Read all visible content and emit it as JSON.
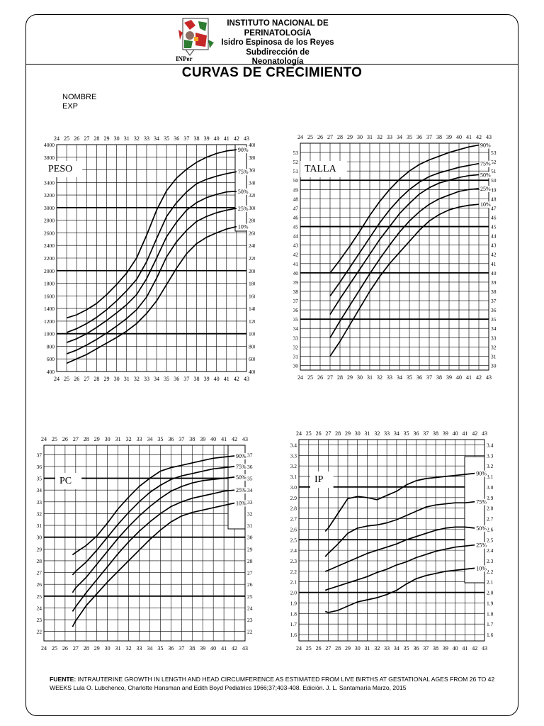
{
  "header": {
    "institute_line1": "INSTITUTO NACIONAL DE",
    "institute_line2": "PERINATOLOGÍA",
    "institute_line3": "Isidro Espinosa de los Reyes",
    "institute_line4": "Subdirección de Neonatología",
    "logo_caption": "INPer",
    "title": "CURVAS DE CRECIMIENTO",
    "nombre_label": "NOMBRE",
    "exp_label": "EXP"
  },
  "footer": {
    "fuente_label": "FUENTE:",
    "fuente_text": "INTRAUTERINE GROWTH IN LENGTH AND HEAD CIRCUMFERENCE AS ESTIMATED FROM LIVE BIRTHS AT GESTATIONAL AGES FROM 26 TO 42 WEEKS Lula O. Lubchenco, Charlotte Hansman and Edith Boyd Pediatrics 1966;37;403-408. Edición. J. L. Santamaría Marzo, 2015"
  },
  "colors": {
    "ink": "#000000",
    "background": "#ffffff"
  },
  "chart_data": [
    {
      "id": "peso",
      "type": "line",
      "title": "PESO",
      "xlabel": "",
      "ylabel": "",
      "x_ticks": [
        24,
        25,
        26,
        27,
        28,
        29,
        30,
        31,
        32,
        33,
        34,
        35,
        36,
        37,
        38,
        39,
        40,
        41,
        42,
        43
      ],
      "y_ticks": [
        400,
        600,
        800,
        1000,
        1200,
        1400,
        1600,
        1800,
        2000,
        2200,
        2400,
        2600,
        2800,
        3000,
        3200,
        3400,
        3600,
        3800,
        4000
      ],
      "y_tick_labels": [
        "400",
        "600",
        "800",
        "1000",
        "1200",
        "1400",
        "1600",
        "1800",
        "2000",
        "2200",
        "2400",
        "2600",
        "2800",
        "3000",
        "3200",
        "3400",
        "3600",
        "3800",
        "4000"
      ],
      "bold_y": [
        1000,
        2000,
        3000
      ],
      "xlim": [
        24,
        43
      ],
      "ylim": [
        400,
        4000
      ],
      "legend": "right",
      "series": [
        {
          "name": "90%",
          "x": [
            25,
            26,
            27,
            28,
            29,
            30,
            31,
            32,
            33,
            34,
            35,
            36,
            37,
            38,
            39,
            40,
            41,
            42
          ],
          "values": [
            1250,
            1300,
            1380,
            1480,
            1620,
            1780,
            1960,
            2200,
            2560,
            2960,
            3270,
            3470,
            3610,
            3720,
            3800,
            3860,
            3900,
            3920
          ]
        },
        {
          "name": "75%",
          "x": [
            25,
            26,
            27,
            28,
            29,
            30,
            31,
            32,
            33,
            34,
            35,
            36,
            37,
            38,
            39,
            40,
            41,
            42
          ],
          "values": [
            1020,
            1080,
            1160,
            1260,
            1380,
            1520,
            1680,
            1860,
            2140,
            2510,
            2860,
            3080,
            3250,
            3380,
            3450,
            3500,
            3540,
            3570
          ]
        },
        {
          "name": "50%",
          "x": [
            25,
            26,
            27,
            28,
            29,
            30,
            31,
            32,
            33,
            34,
            35,
            36,
            37,
            38,
            39,
            40,
            41,
            42
          ],
          "values": [
            860,
            920,
            1000,
            1100,
            1210,
            1330,
            1460,
            1620,
            1870,
            2200,
            2540,
            2770,
            2960,
            3080,
            3160,
            3210,
            3250,
            3260
          ]
        },
        {
          "name": "25%",
          "x": [
            25,
            26,
            27,
            28,
            29,
            30,
            31,
            32,
            33,
            34,
            35,
            36,
            37,
            38,
            39,
            40,
            41,
            42
          ],
          "values": [
            680,
            740,
            820,
            910,
            1010,
            1120,
            1240,
            1380,
            1580,
            1880,
            2220,
            2460,
            2640,
            2780,
            2860,
            2920,
            2960,
            2990
          ]
        },
        {
          "name": "10%",
          "x": [
            25,
            26,
            27,
            28,
            29,
            30,
            31,
            32,
            33,
            34,
            35,
            36,
            37,
            38,
            39,
            40,
            41,
            42
          ],
          "values": [
            530,
            600,
            670,
            760,
            850,
            940,
            1040,
            1160,
            1320,
            1520,
            1780,
            2040,
            2270,
            2430,
            2530,
            2600,
            2660,
            2700
          ]
        }
      ]
    },
    {
      "id": "talla",
      "type": "line",
      "title": "TALLA",
      "xlabel": "",
      "ylabel": "",
      "x_ticks": [
        24,
        25,
        26,
        27,
        28,
        29,
        30,
        31,
        32,
        33,
        34,
        35,
        36,
        37,
        38,
        39,
        40,
        41,
        42,
        43
      ],
      "y_ticks": [
        30,
        31,
        32,
        33,
        34,
        35,
        36,
        37,
        38,
        39,
        40,
        41,
        42,
        43,
        44,
        45,
        46,
        47,
        48,
        49,
        50,
        51,
        52,
        53
      ],
      "y_tick_labels": [
        "30",
        "31",
        "32",
        "33",
        "34",
        "35",
        "36",
        "37",
        "38",
        "39",
        "40",
        "41",
        "42",
        "43",
        "44",
        "45",
        "46",
        "47",
        "48",
        "49",
        "50",
        "51",
        "52",
        "53"
      ],
      "bold_y": [
        35,
        40,
        45,
        50
      ],
      "xlim": [
        24,
        43
      ],
      "ylim": [
        29.5,
        54
      ],
      "legend": "right",
      "series": [
        {
          "name": "90%",
          "x": [
            27,
            28,
            29,
            30,
            31,
            32,
            33,
            34,
            35,
            36,
            37,
            38,
            39,
            40,
            41,
            42
          ],
          "values": [
            40.0,
            41.4,
            42.9,
            44.5,
            46.2,
            47.7,
            49.0,
            50.1,
            51.0,
            51.7,
            52.2,
            52.6,
            53.0,
            53.3,
            53.6,
            53.8
          ]
        },
        {
          "name": "75%",
          "x": [
            27,
            28,
            29,
            30,
            31,
            32,
            33,
            34,
            35,
            36,
            37,
            38,
            39,
            40,
            41,
            42
          ],
          "values": [
            37.5,
            39.0,
            40.6,
            42.2,
            43.8,
            45.4,
            46.8,
            48.0,
            49.0,
            49.8,
            50.4,
            50.8,
            51.1,
            51.4,
            51.6,
            51.8
          ]
        },
        {
          "name": "50%",
          "x": [
            27,
            28,
            29,
            30,
            31,
            32,
            33,
            34,
            35,
            36,
            37,
            38,
            39,
            40,
            41,
            42
          ],
          "values": [
            35.5,
            37.2,
            38.8,
            40.4,
            42.0,
            43.6,
            45.0,
            46.4,
            47.5,
            48.5,
            49.2,
            49.7,
            50.0,
            50.3,
            50.5,
            50.6
          ]
        },
        {
          "name": "25%",
          "x": [
            27,
            28,
            29,
            30,
            31,
            32,
            33,
            34,
            35,
            36,
            37,
            38,
            39,
            40,
            41,
            42
          ],
          "values": [
            33.0,
            34.8,
            36.5,
            38.2,
            39.9,
            41.5,
            43.0,
            44.4,
            45.6,
            46.6,
            47.4,
            48.0,
            48.4,
            48.8,
            49.0,
            49.1
          ]
        },
        {
          "name": "10%",
          "x": [
            27,
            28,
            29,
            30,
            31,
            32,
            33,
            34,
            35,
            36,
            37,
            38,
            39,
            40,
            41,
            42
          ],
          "values": [
            31.0,
            32.6,
            34.4,
            36.2,
            38.0,
            39.6,
            41.0,
            42.2,
            43.4,
            44.6,
            45.6,
            46.3,
            46.8,
            47.1,
            47.3,
            47.4
          ]
        }
      ]
    },
    {
      "id": "pc",
      "type": "line",
      "title": "PC",
      "xlabel": "",
      "ylabel": "",
      "x_ticks": [
        24,
        25,
        26,
        27,
        28,
        29,
        30,
        31,
        32,
        33,
        34,
        35,
        36,
        37,
        38,
        39,
        40,
        41,
        42,
        43
      ],
      "y_ticks": [
        22,
        23,
        24,
        25,
        26,
        27,
        28,
        29,
        30,
        31,
        32,
        33,
        34,
        35,
        36,
        37
      ],
      "y_tick_labels": [
        "22",
        "23",
        "24",
        "25",
        "26",
        "27",
        "28",
        "29",
        "30",
        "31",
        "32",
        "33",
        "34",
        "35",
        "36",
        "37"
      ],
      "bold_y": [
        25,
        30,
        35
      ],
      "xlim": [
        24,
        43
      ],
      "ylim": [
        21.2,
        37.8
      ],
      "legend": "right",
      "series": [
        {
          "name": "90%",
          "x": [
            26.7,
            27,
            28,
            29,
            30,
            31,
            32,
            33,
            34,
            35,
            36,
            37,
            38,
            39,
            40,
            41,
            42
          ],
          "values": [
            28.5,
            28.7,
            29.3,
            30.1,
            31.2,
            32.4,
            33.4,
            34.3,
            35.0,
            35.6,
            35.9,
            36.1,
            36.3,
            36.5,
            36.7,
            36.8,
            36.9
          ]
        },
        {
          "name": "75%",
          "x": [
            26.7,
            27,
            28,
            29,
            30,
            31,
            32,
            33,
            34,
            35,
            36,
            37,
            38,
            39,
            40,
            41,
            42
          ],
          "values": [
            26.8,
            27.1,
            27.9,
            28.9,
            30.0,
            31.1,
            32.1,
            33.0,
            33.8,
            34.4,
            34.9,
            35.2,
            35.4,
            35.6,
            35.8,
            35.9,
            36.0
          ]
        },
        {
          "name": "50%",
          "x": [
            26.7,
            27,
            28,
            29,
            30,
            31,
            32,
            33,
            34,
            35,
            36,
            37,
            38,
            39,
            40,
            41,
            42
          ],
          "values": [
            25.3,
            25.7,
            26.6,
            27.7,
            28.8,
            29.9,
            30.9,
            31.8,
            32.6,
            33.3,
            33.9,
            34.3,
            34.6,
            34.8,
            34.9,
            35.0,
            35.1
          ]
        },
        {
          "name": "25%",
          "x": [
            26.7,
            27,
            28,
            29,
            30,
            31,
            32,
            33,
            34,
            35,
            36,
            37,
            38,
            39,
            40,
            41,
            42
          ],
          "values": [
            23.7,
            24.1,
            25.3,
            26.4,
            27.5,
            28.6,
            29.6,
            30.5,
            31.3,
            32.0,
            32.6,
            33.0,
            33.3,
            33.5,
            33.7,
            33.9,
            34.0
          ]
        },
        {
          "name": "10%",
          "x": [
            26.7,
            27,
            28,
            29,
            30,
            31,
            32,
            33,
            34,
            35,
            36,
            37,
            38,
            39,
            40,
            41,
            42
          ],
          "values": [
            22.4,
            22.9,
            24.2,
            25.2,
            26.2,
            27.1,
            28.0,
            28.9,
            29.8,
            30.6,
            31.3,
            31.8,
            32.1,
            32.3,
            32.5,
            32.7,
            32.9
          ]
        }
      ]
    },
    {
      "id": "ip",
      "type": "line",
      "title": "IP",
      "xlabel": "",
      "ylabel": "",
      "x_ticks": [
        24,
        25,
        26,
        27,
        28,
        29,
        30,
        31,
        32,
        33,
        34,
        35,
        36,
        37,
        38,
        39,
        40,
        41,
        42,
        43
      ],
      "y_ticks": [
        1.6,
        1.7,
        1.8,
        1.9,
        2.0,
        2.1,
        2.2,
        2.3,
        2.4,
        2.5,
        2.6,
        2.7,
        2.8,
        2.9,
        3.0,
        3.1,
        3.2,
        3.3,
        3.4
      ],
      "y_tick_labels": [
        "1.6",
        "1.7",
        "1.8",
        "1.9",
        "2.0",
        "2.1",
        "2.2",
        "2.3",
        "2.4",
        "2.5",
        "2.6",
        "2.7",
        "2.8",
        "2.9",
        "3.0",
        "3.1",
        "3.2",
        "3.3",
        "3.4"
      ],
      "bold_y": [
        2.0,
        2.5,
        3.0
      ],
      "xlim": [
        24,
        43
      ],
      "ylim": [
        1.54,
        3.45
      ],
      "legend": "right",
      "series": [
        {
          "name": "90%",
          "x": [
            26.7,
            27,
            28,
            29,
            30,
            31,
            32,
            33,
            34,
            35,
            36,
            37,
            38,
            39,
            40,
            41,
            42
          ],
          "values": [
            2.58,
            2.61,
            2.75,
            2.89,
            2.91,
            2.9,
            2.88,
            2.92,
            2.96,
            3.02,
            3.06,
            3.08,
            3.09,
            3.1,
            3.11,
            3.12,
            3.13
          ]
        },
        {
          "name": "75%",
          "x": [
            26.7,
            27,
            28,
            29,
            30,
            31,
            32,
            33,
            34,
            35,
            36,
            37,
            38,
            39,
            40,
            41,
            42
          ],
          "values": [
            2.34,
            2.37,
            2.46,
            2.56,
            2.61,
            2.63,
            2.64,
            2.66,
            2.69,
            2.73,
            2.77,
            2.81,
            2.83,
            2.84,
            2.85,
            2.85,
            2.86
          ]
        },
        {
          "name": "50%",
          "x": [
            26.7,
            27,
            28,
            29,
            30,
            31,
            32,
            33,
            34,
            35,
            36,
            37,
            38,
            39,
            40,
            41,
            42
          ],
          "values": [
            2.2,
            2.21,
            2.25,
            2.29,
            2.33,
            2.37,
            2.4,
            2.43,
            2.46,
            2.5,
            2.53,
            2.56,
            2.59,
            2.61,
            2.62,
            2.62,
            2.61
          ]
        },
        {
          "name": "25%",
          "x": [
            26.7,
            27,
            28,
            29,
            30,
            31,
            32,
            33,
            34,
            35,
            36,
            37,
            38,
            39,
            40,
            41,
            42
          ],
          "values": [
            2.02,
            2.03,
            2.06,
            2.09,
            2.12,
            2.15,
            2.19,
            2.22,
            2.26,
            2.29,
            2.33,
            2.36,
            2.39,
            2.41,
            2.43,
            2.44,
            2.45
          ]
        },
        {
          "name": "10%",
          "x": [
            26.7,
            27,
            28,
            29,
            30,
            31,
            32,
            33,
            34,
            35,
            36,
            37,
            38,
            39,
            40,
            41,
            42
          ],
          "values": [
            1.82,
            1.81,
            1.83,
            1.87,
            1.91,
            1.93,
            1.95,
            1.98,
            2.02,
            2.08,
            2.13,
            2.16,
            2.18,
            2.2,
            2.21,
            2.22,
            2.23
          ]
        }
      ]
    }
  ]
}
